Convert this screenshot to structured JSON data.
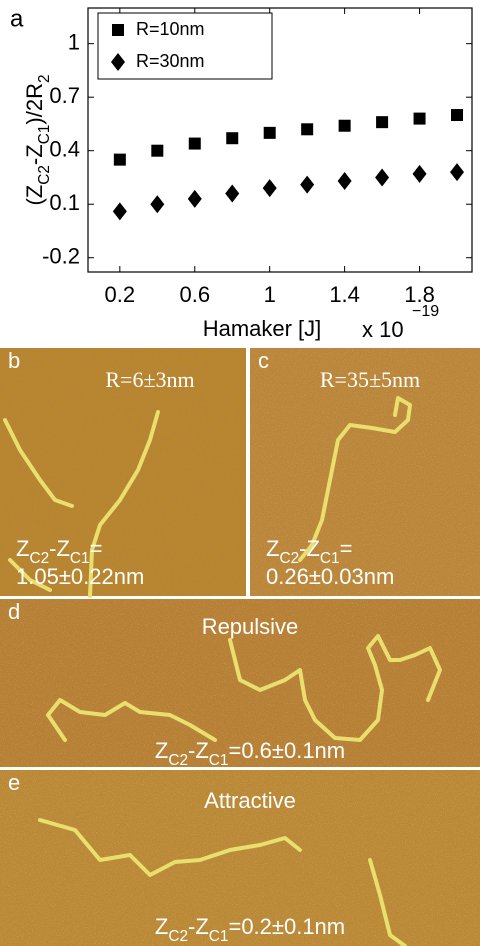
{
  "chart_data": {
    "type": "scatter",
    "panel_label": "a",
    "xlabel": "Hamaker [J]",
    "x_multiplier": {
      "base": "x 10",
      "exponent": "−19"
    },
    "ylabel": [
      {
        "text": "(Z"
      },
      {
        "text": "C2",
        "sub": true
      },
      {
        "text": "-Z"
      },
      {
        "text": "C1",
        "sub": true
      },
      {
        "text": ")/2R"
      },
      {
        "text": "2",
        "sub": true
      }
    ],
    "xlim": [
      0.03,
      2.08
    ],
    "ylim": [
      -0.28,
      1.2
    ],
    "xticks": [
      0.2,
      0.6,
      1,
      1.4,
      1.8
    ],
    "yticks": [
      -0.2,
      0.1,
      0.4,
      0.7,
      1
    ],
    "legend": "upper left",
    "series": [
      {
        "name": "R=10nm",
        "marker": "square",
        "color": "#000000",
        "x": [
          0.2,
          0.4,
          0.6,
          0.8,
          1.0,
          1.2,
          1.4,
          1.6,
          1.8,
          2.0
        ],
        "values": [
          0.35,
          0.4,
          0.44,
          0.47,
          0.5,
          0.52,
          0.54,
          0.56,
          0.58,
          0.6
        ]
      },
      {
        "name": "R=30nm",
        "marker": "diamond",
        "color": "#000000",
        "x": [
          0.2,
          0.4,
          0.6,
          0.8,
          1.0,
          1.2,
          1.4,
          1.6,
          1.8,
          2.0
        ],
        "values": [
          0.06,
          0.1,
          0.13,
          0.16,
          0.19,
          0.21,
          0.23,
          0.25,
          0.27,
          0.28
        ]
      }
    ]
  },
  "panels": [
    {
      "label": "b",
      "title": "R=6±3nm",
      "annotation_lines": [
        [
          {
            "text": "Z"
          },
          {
            "text": "C2",
            "sub": true
          },
          {
            "text": "-Z"
          },
          {
            "text": "C1",
            "sub": true
          },
          {
            "text": "="
          }
        ],
        [
          {
            "text": "1.05±0.22nm"
          }
        ]
      ]
    },
    {
      "label": "c",
      "title": "R=35±5nm",
      "annotation_lines": [
        [
          {
            "text": "Z"
          },
          {
            "text": "C2",
            "sub": true
          },
          {
            "text": "-Z"
          },
          {
            "text": "C1",
            "sub": true
          },
          {
            "text": "="
          }
        ],
        [
          {
            "text": "0.26±0.03nm"
          }
        ]
      ]
    },
    {
      "label": "d",
      "title": "Repulsive",
      "annotation_lines": [
        [
          {
            "text": "Z"
          },
          {
            "text": "C2",
            "sub": true
          },
          {
            "text": "-Z"
          },
          {
            "text": "C1",
            "sub": true
          },
          {
            "text": "=0.6±0.1nm"
          }
        ]
      ]
    },
    {
      "label": "e",
      "title": "Attractive",
      "annotation_lines": [
        [
          {
            "text": "Z"
          },
          {
            "text": "C2",
            "sub": true
          },
          {
            "text": "-Z"
          },
          {
            "text": "C1",
            "sub": true
          },
          {
            "text": "=0.2±0.1nm"
          }
        ]
      ]
    }
  ]
}
